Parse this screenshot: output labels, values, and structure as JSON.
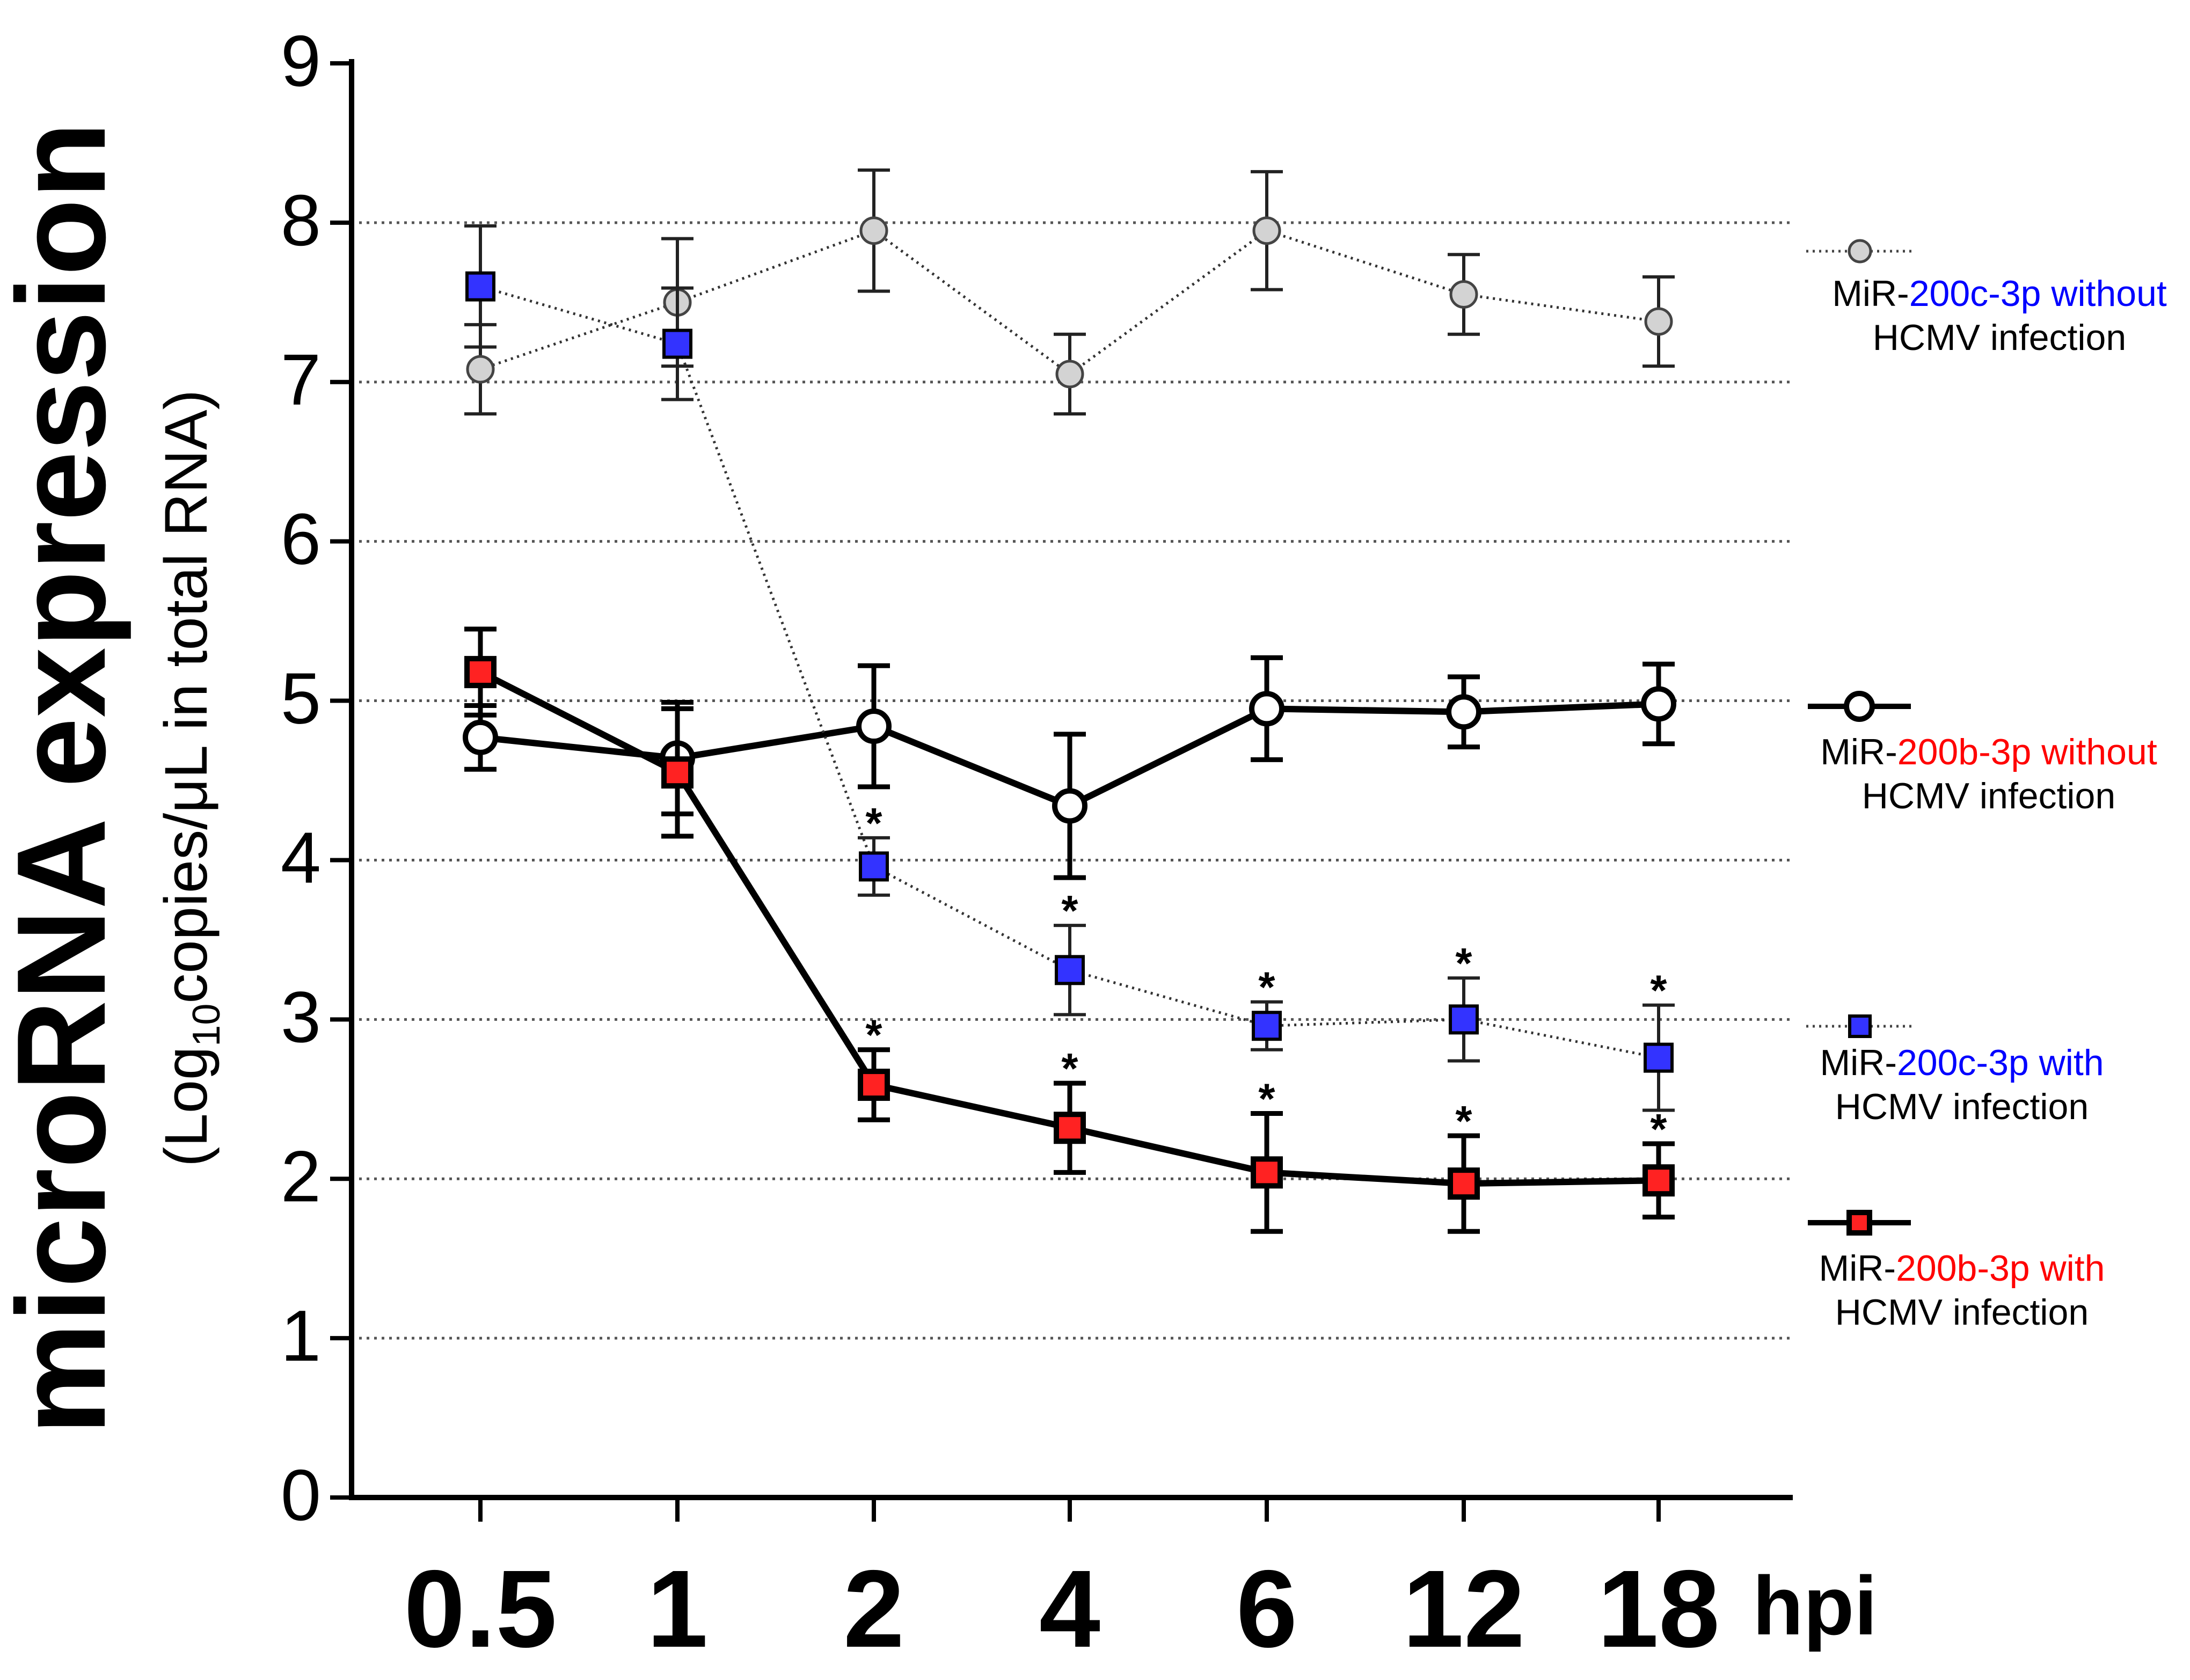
{
  "chart_data": {
    "type": "line",
    "title": "",
    "ylabel_main": "microRNA expression",
    "ylabel_sub": {
      "pre": "(Log",
      "sub": "10",
      "post": "copies/μL in total RNA)"
    },
    "xlabel": "hpi",
    "categories": [
      "0.5",
      "1",
      "2",
      "4",
      "6",
      "12",
      "18"
    ],
    "yticks": [
      "0",
      "1",
      "2",
      "3",
      "4",
      "5",
      "6",
      "7",
      "8",
      "9"
    ],
    "ylim": [
      0,
      9
    ],
    "grid": true,
    "series": [
      {
        "key": "c_without",
        "name_parts": [
          [
            "MiR-",
            "#000000"
          ],
          [
            "200c-3p",
            "#0000ff"
          ],
          [
            " without",
            "#0000ff"
          ]
        ],
        "name_line2": "HCMV infection",
        "marker": "circle",
        "fill": "#d3d3d3",
        "line_style": "dotted",
        "values": [
          7.08,
          7.5,
          7.95,
          7.05,
          7.95,
          7.55,
          7.38
        ],
        "errors": [
          0.28,
          0.4,
          0.38,
          0.25,
          0.37,
          0.25,
          0.28
        ],
        "sig": [
          false,
          false,
          false,
          false,
          false,
          false,
          false
        ]
      },
      {
        "key": "b_without",
        "name_parts": [
          [
            "MiR-",
            "#000000"
          ],
          [
            "200b-3p",
            "#ff0000"
          ],
          [
            " without",
            "#ff0000"
          ]
        ],
        "name_line2": "HCMV infection",
        "marker": "circle",
        "fill": "#ffffff",
        "line_style": "solid",
        "values": [
          4.77,
          4.64,
          4.84,
          4.34,
          4.95,
          4.93,
          4.98
        ],
        "errors": [
          0.2,
          0.35,
          0.38,
          0.45,
          0.32,
          0.22,
          0.25
        ],
        "sig": [
          false,
          false,
          false,
          false,
          false,
          false,
          false
        ]
      },
      {
        "key": "c_with",
        "name_parts": [
          [
            "MiR-",
            "#000000"
          ],
          [
            "200c-3p",
            "#0000ff"
          ],
          [
            " with",
            "#0000ff"
          ]
        ],
        "name_line2": "HCMV infection",
        "marker": "square",
        "fill": "#3333ff",
        "line_style": "dotted",
        "values": [
          7.6,
          7.24,
          3.96,
          3.31,
          2.96,
          3.0,
          2.76
        ],
        "errors": [
          0.38,
          0.35,
          0.18,
          0.28,
          0.15,
          0.26,
          0.33
        ],
        "sig": [
          false,
          false,
          true,
          true,
          true,
          true,
          true
        ]
      },
      {
        "key": "b_with",
        "name_parts": [
          [
            "MiR-",
            "#000000"
          ],
          [
            "200b-3p",
            "#ff0000"
          ],
          [
            " with",
            "#ff0000"
          ]
        ],
        "name_line2": "HCMV infection",
        "marker": "square",
        "fill": "#ff2222",
        "line_style": "solid",
        "values": [
          5.18,
          4.55,
          2.59,
          2.32,
          2.04,
          1.97,
          1.99
        ],
        "errors": [
          0.27,
          0.4,
          0.22,
          0.28,
          0.37,
          0.3,
          0.23
        ],
        "sig": [
          false,
          false,
          true,
          true,
          true,
          true,
          true
        ]
      }
    ],
    "significance_label": "*"
  }
}
